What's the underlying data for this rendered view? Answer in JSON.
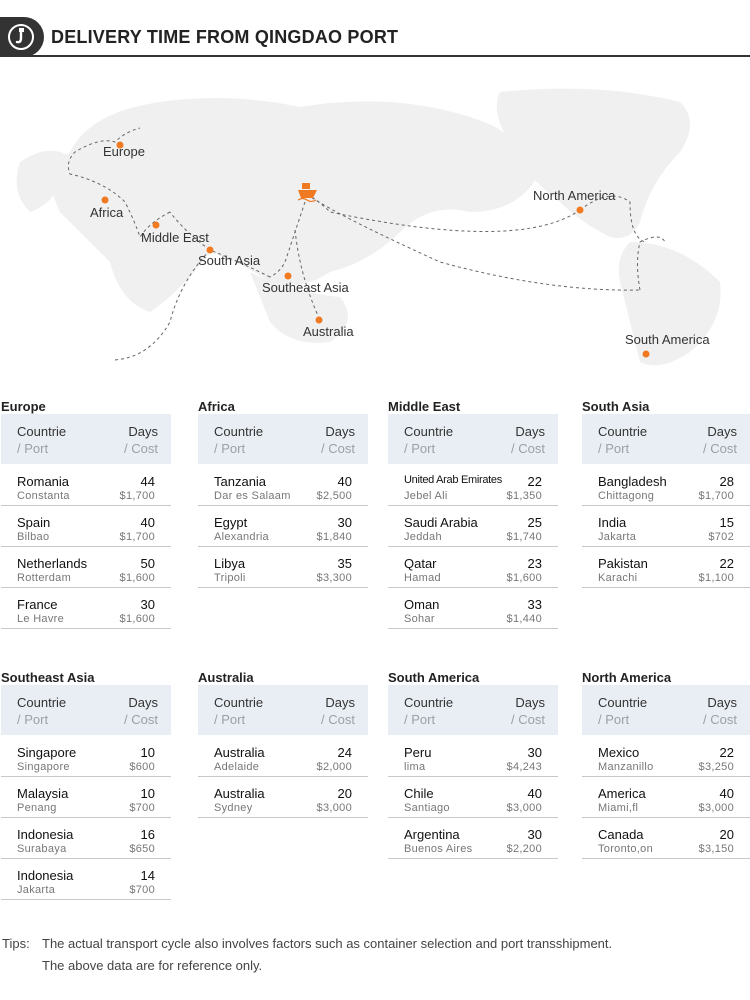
{
  "header": {
    "title": "DELIVERY TIME FROM QINGDAO PORT"
  },
  "map": {
    "labels": {
      "europe": "Europe",
      "africa": "Africa",
      "middle_east": "Middle East",
      "south_asia": "South Asia",
      "southeast_asia": "Southeast Asia",
      "australia": "Australia",
      "north_america": "North America",
      "south_america": "South America"
    },
    "route_color": "#666666",
    "marker_color": "#f07a21",
    "ship_icon": "ship-icon"
  },
  "table_header": {
    "col1_line1": "Countrie",
    "col1_line2": "/ Port",
    "col2_line1": "Days",
    "col2_line2": "/ Cost"
  },
  "regions": [
    {
      "title": "Europe",
      "rows": [
        {
          "country": "Romania",
          "port": "Constanta",
          "days": "44",
          "cost": "$1,700"
        },
        {
          "country": "Spain",
          "port": "Bilbao",
          "days": "40",
          "cost": "$1,700"
        },
        {
          "country": "Netherlands",
          "port": "Rotterdam",
          "days": "50",
          "cost": "$1,600"
        },
        {
          "country": "France",
          "port": "Le Havre",
          "days": "30",
          "cost": "$1,600"
        }
      ]
    },
    {
      "title": "Africa",
      "rows": [
        {
          "country": "Tanzania",
          "port": "Dar es Salaam",
          "days": "40",
          "cost": "$2,500"
        },
        {
          "country": "Egypt",
          "port": "Alexandria",
          "days": "30",
          "cost": "$1,840"
        },
        {
          "country": "Libya",
          "port": "Tripoli",
          "days": "35",
          "cost": "$3,300"
        }
      ]
    },
    {
      "title": "Middle East",
      "rows": [
        {
          "country": "United Arab Emirates",
          "port": "Jebel Ali",
          "days": "22",
          "cost": "$1,350"
        },
        {
          "country": "Saudi Arabia",
          "port": "Jeddah",
          "days": "25",
          "cost": "$1,740"
        },
        {
          "country": "Qatar",
          "port": "Hamad",
          "days": "23",
          "cost": "$1,600"
        },
        {
          "country": "Oman",
          "port": "Sohar",
          "days": "33",
          "cost": "$1,440"
        }
      ]
    },
    {
      "title": "South Asia",
      "rows": [
        {
          "country": "Bangladesh",
          "port": "Chittagong",
          "days": "28",
          "cost": "$1,700"
        },
        {
          "country": "India",
          "port": "Jakarta",
          "days": "15",
          "cost": "$702"
        },
        {
          "country": "Pakistan",
          "port": "Karachi",
          "days": "22",
          "cost": "$1,100"
        }
      ]
    },
    {
      "title": "Southeast Asia",
      "rows": [
        {
          "country": "Singapore",
          "port": "Singapore",
          "days": "10",
          "cost": "$600"
        },
        {
          "country": "Malaysia",
          "port": "Penang",
          "days": "10",
          "cost": "$700"
        },
        {
          "country": "Indonesia",
          "port": "Surabaya",
          "days": "16",
          "cost": "$650"
        },
        {
          "country": "Indonesia",
          "port": "Jakarta",
          "days": "14",
          "cost": "$700"
        }
      ]
    },
    {
      "title": "Australia",
      "rows": [
        {
          "country": "Australia",
          "port": "Adelaide",
          "days": "24",
          "cost": "$2,000"
        },
        {
          "country": "Australia",
          "port": "Sydney",
          "days": "20",
          "cost": "$3,000"
        }
      ]
    },
    {
      "title": "South America",
      "rows": [
        {
          "country": "Peru",
          "port": "lima",
          "days": "30",
          "cost": "$4,243"
        },
        {
          "country": "Chile",
          "port": "Santiago",
          "days": "40",
          "cost": "$3,000"
        },
        {
          "country": "Argentina",
          "port": "Buenos Aires",
          "days": "30",
          "cost": "$2,200"
        }
      ]
    },
    {
      "title": "North America",
      "rows": [
        {
          "country": "Mexico",
          "port": "Manzanillo",
          "days": "22",
          "cost": "$3,250"
        },
        {
          "country": "America",
          "port": "Miami,fl",
          "days": "40",
          "cost": "$3,000"
        },
        {
          "country": "Canada",
          "port": "Toronto,on",
          "days": "20",
          "cost": "$3,150"
        }
      ]
    }
  ],
  "tips": {
    "label": "Tips:",
    "line1": "The actual transport cycle also involves factors such as container selection and port transshipment.",
    "line2": "The above data are for reference only."
  }
}
